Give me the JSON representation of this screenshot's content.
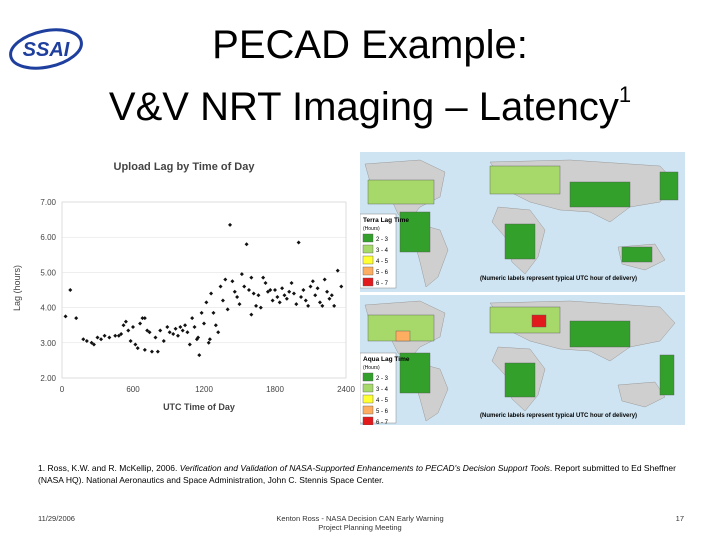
{
  "slide": {
    "logo_text": "SSAI",
    "title_line1": "PECAD Example:",
    "title_line2": "V&V NRT Imaging – Latency",
    "title_sup": "1"
  },
  "chart_data": {
    "type": "scatter",
    "title": "Upload Lag by Time of Day",
    "xlabel": "UTC Time of Day",
    "ylabel": "Lag (hours)",
    "xlim": [
      0,
      2400
    ],
    "ylim": [
      2,
      7
    ],
    "xticks": [
      "0",
      "600",
      "1200",
      "1800",
      "2400"
    ],
    "yticks": [
      "2.00",
      "3.00",
      "4.00",
      "5.00",
      "6.00",
      "7.00"
    ],
    "points": [
      [
        30,
        3.75
      ],
      [
        70,
        4.5
      ],
      [
        120,
        3.7
      ],
      [
        250,
        3.0
      ],
      [
        270,
        2.95
      ],
      [
        300,
        3.15
      ],
      [
        330,
        3.1
      ],
      [
        360,
        3.2
      ],
      [
        400,
        3.15
      ],
      [
        450,
        3.2
      ],
      [
        500,
        3.25
      ],
      [
        520,
        3.5
      ],
      [
        540,
        3.6
      ],
      [
        560,
        3.35
      ],
      [
        580,
        3.05
      ],
      [
        600,
        3.45
      ],
      [
        620,
        2.95
      ],
      [
        640,
        2.85
      ],
      [
        660,
        3.55
      ],
      [
        680,
        3.7
      ],
      [
        700,
        2.8
      ],
      [
        720,
        3.35
      ],
      [
        740,
        3.3
      ],
      [
        760,
        2.75
      ],
      [
        790,
        3.15
      ],
      [
        810,
        2.75
      ],
      [
        830,
        3.35
      ],
      [
        860,
        3.05
      ],
      [
        890,
        3.45
      ],
      [
        910,
        3.3
      ],
      [
        940,
        3.25
      ],
      [
        960,
        3.4
      ],
      [
        980,
        3.2
      ],
      [
        1000,
        3.45
      ],
      [
        1020,
        3.35
      ],
      [
        1040,
        3.5
      ],
      [
        1060,
        3.3
      ],
      [
        1080,
        2.95
      ],
      [
        1100,
        3.7
      ],
      [
        1120,
        3.45
      ],
      [
        1140,
        3.1
      ],
      [
        1160,
        2.65
      ],
      [
        1180,
        3.85
      ],
      [
        1200,
        3.55
      ],
      [
        1220,
        4.15
      ],
      [
        1240,
        3.0
      ],
      [
        1260,
        4.4
      ],
      [
        1280,
        3.85
      ],
      [
        1300,
        3.5
      ],
      [
        1320,
        3.3
      ],
      [
        1340,
        4.6
      ],
      [
        1360,
        4.2
      ],
      [
        1380,
        4.8
      ],
      [
        1400,
        3.95
      ],
      [
        1420,
        6.35
      ],
      [
        1440,
        4.75
      ],
      [
        1460,
        4.45
      ],
      [
        1480,
        4.3
      ],
      [
        1500,
        4.1
      ],
      [
        1520,
        4.95
      ],
      [
        1540,
        4.6
      ],
      [
        1560,
        5.8
      ],
      [
        1580,
        4.5
      ],
      [
        1600,
        4.85
      ],
      [
        1620,
        4.4
      ],
      [
        1640,
        4.05
      ],
      [
        1660,
        4.35
      ],
      [
        1680,
        4.0
      ],
      [
        1700,
        4.85
      ],
      [
        1720,
        4.7
      ],
      [
        1740,
        4.45
      ],
      [
        1760,
        4.5
      ],
      [
        1780,
        4.2
      ],
      [
        1800,
        4.5
      ],
      [
        1820,
        4.3
      ],
      [
        1840,
        4.15
      ],
      [
        1860,
        4.55
      ],
      [
        1880,
        4.35
      ],
      [
        1900,
        4.25
      ],
      [
        1920,
        4.45
      ],
      [
        1940,
        4.7
      ],
      [
        1960,
        4.4
      ],
      [
        1980,
        4.1
      ],
      [
        2000,
        5.85
      ],
      [
        2020,
        4.3
      ],
      [
        2040,
        4.5
      ],
      [
        2060,
        4.2
      ],
      [
        2080,
        4.05
      ],
      [
        2100,
        4.6
      ],
      [
        2120,
        4.75
      ],
      [
        2140,
        4.35
      ],
      [
        2160,
        4.55
      ],
      [
        2180,
        4.15
      ],
      [
        2200,
        4.05
      ],
      [
        2220,
        4.8
      ],
      [
        2240,
        4.45
      ],
      [
        2260,
        4.25
      ],
      [
        2280,
        4.35
      ],
      [
        2300,
        4.05
      ],
      [
        2330,
        5.05
      ],
      [
        2360,
        4.6
      ],
      [
        180,
        3.1
      ],
      [
        210,
        3.05
      ],
      [
        480,
        3.2
      ],
      [
        700,
        3.7
      ],
      [
        1150,
        3.15
      ],
      [
        1250,
        3.1
      ],
      [
        1600,
        3.8
      ]
    ]
  },
  "maps": {
    "terra_label": "Terra Lag Time",
    "aqua_label": "Aqua Lag Time",
    "hours_label": "(Hours)",
    "legend": [
      {
        "range": "2 - 3",
        "color": "#33a02c"
      },
      {
        "range": "3 - 4",
        "color": "#a6d96a"
      },
      {
        "range": "4 - 5",
        "color": "#ffff33"
      },
      {
        "range": "5 - 6",
        "color": "#fdae61"
      },
      {
        "range": "6 - 7",
        "color": "#e31a1c"
      }
    ],
    "note": "(Numeric labels represent typical UTC hour of delivery)"
  },
  "footnote": {
    "prefix": "1. Ross, K.W. and R. McKellip, 2006. ",
    "italic": "Verification and Validation of NASA-Supported Enhancements to PECAD's Decision Support Tools",
    "suffix": ". Report submitted to Ed Sheffner (NASA HQ). National Aeronautics and Space Administration, John C. Stennis Space Center."
  },
  "footer": {
    "date": "11/29/2006",
    "center_line1": "Kenton Ross - NASA Decision CAN Early Warning",
    "center_line2": "Project Planning Meeting",
    "page": "17"
  },
  "colors": {
    "ocean": "#cfe4f2",
    "land": "#cfcfcf",
    "logo_blue": "#1f3f9e"
  }
}
